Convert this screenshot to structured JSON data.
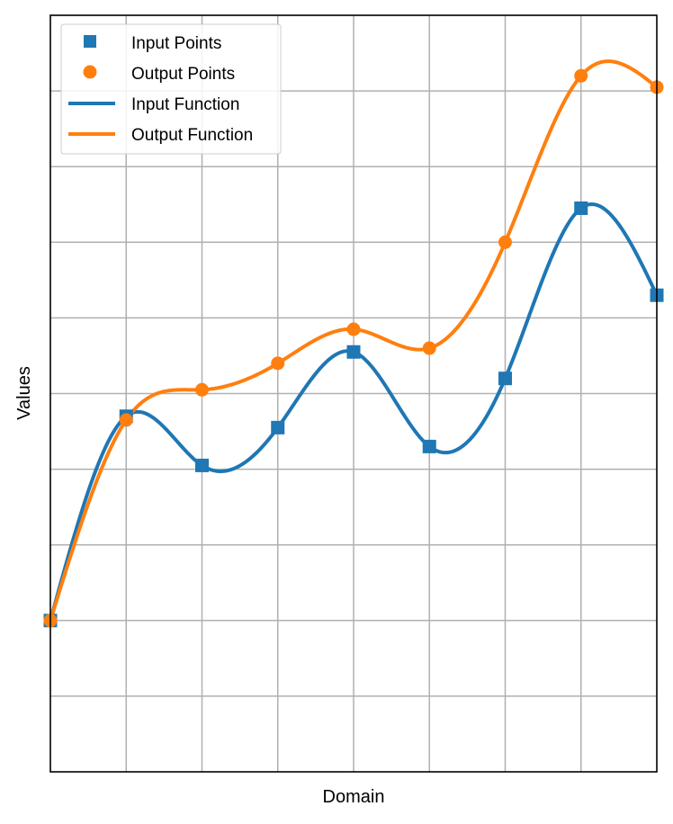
{
  "chart_data": {
    "type": "line",
    "xlabel": "Domain",
    "ylabel": "Values",
    "xlim": [
      0,
      8
    ],
    "ylim": [
      0,
      10
    ],
    "grid": true,
    "tick_labels_shown": false,
    "legend_position": "upper-left",
    "legend": [
      "Input Points",
      "Output Points",
      "Input Function",
      "Output Function"
    ],
    "colors": {
      "input": "#1f77b4",
      "output": "#ff7f0e"
    },
    "series": [
      {
        "name": "Input Points",
        "kind": "scatter",
        "marker": "square",
        "color": "#1f77b4",
        "x": [
          0,
          1,
          2,
          3,
          4,
          5,
          6,
          7,
          8
        ],
        "y": [
          2.0,
          4.7,
          4.05,
          4.55,
          5.55,
          4.3,
          5.2,
          7.45,
          6.3
        ]
      },
      {
        "name": "Output Points",
        "kind": "scatter",
        "marker": "circle",
        "color": "#ff7f0e",
        "x": [
          0,
          1,
          2,
          3,
          4,
          5,
          6,
          7,
          8
        ],
        "y": [
          2.0,
          4.65,
          5.05,
          5.4,
          5.85,
          5.6,
          7.0,
          9.2,
          9.05
        ]
      },
      {
        "name": "Input Function",
        "kind": "line",
        "color": "#1f77b4",
        "x": [
          0,
          1,
          2,
          3,
          4,
          5,
          6,
          7,
          8
        ],
        "y": [
          2.0,
          4.7,
          4.05,
          4.55,
          5.55,
          4.3,
          5.2,
          7.45,
          6.3
        ]
      },
      {
        "name": "Output Function",
        "kind": "line",
        "color": "#ff7f0e",
        "x": [
          0,
          1,
          2,
          3,
          4,
          5,
          6,
          7,
          8
        ],
        "y": [
          2.0,
          4.65,
          5.05,
          5.4,
          5.85,
          5.6,
          7.0,
          9.2,
          9.05
        ]
      }
    ]
  }
}
